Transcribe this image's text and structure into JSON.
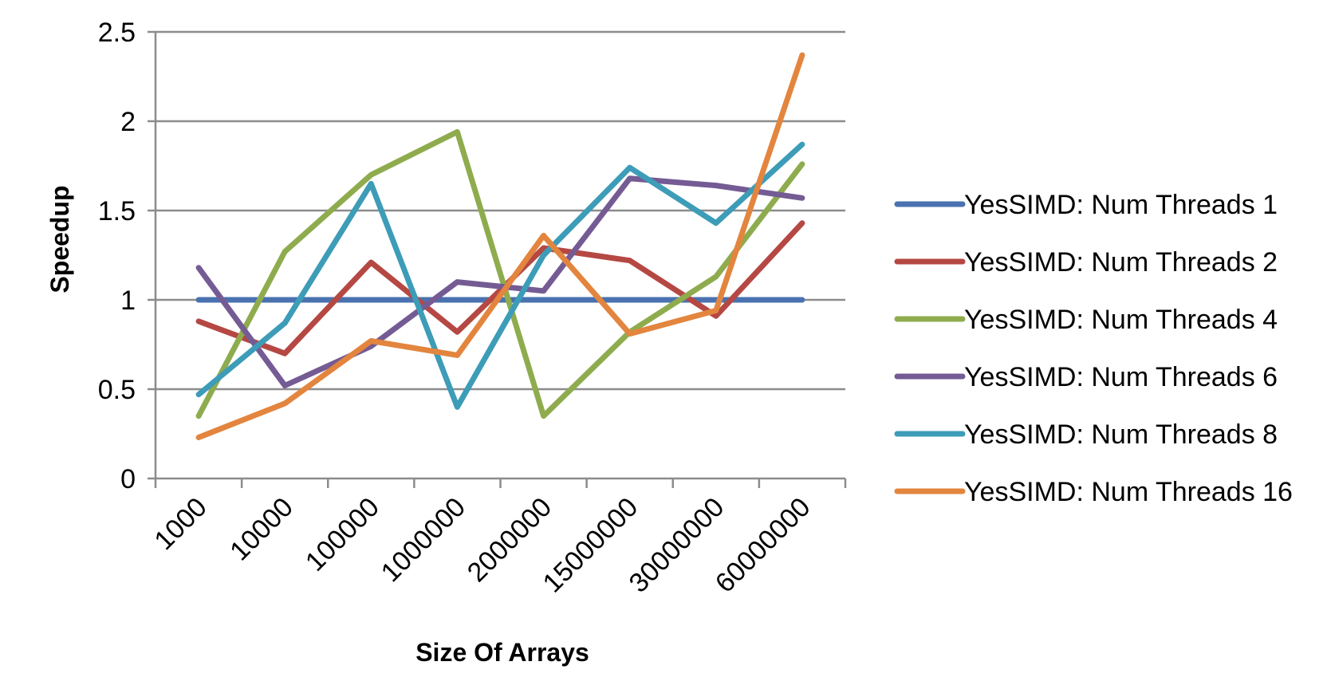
{
  "chart_data": {
    "type": "line",
    "title": "",
    "xlabel": "Size Of Arrays",
    "ylabel": "Speedup",
    "categories": [
      "1000",
      "10000",
      "100000",
      "1000000",
      "2000000",
      "15000000",
      "30000000",
      "60000000"
    ],
    "ylim": [
      0,
      2.5
    ],
    "yticks": [
      "0",
      "0.5",
      "1",
      "1.5",
      "2",
      "2.5"
    ],
    "grid": true,
    "legend_position": "right",
    "series": [
      {
        "name": "YesSIMD: Num Threads 1",
        "color": "#4a72b0",
        "values": [
          1,
          1,
          1,
          1,
          1,
          1,
          1,
          1
        ]
      },
      {
        "name": "YesSIMD: Num Threads 2",
        "color": "#b54843",
        "values": [
          0.88,
          0.7,
          1.21,
          0.82,
          1.29,
          1.22,
          0.91,
          1.43
        ]
      },
      {
        "name": "YesSIMD: Num Threads 4",
        "color": "#8eac4e",
        "values": [
          0.35,
          1.27,
          1.7,
          1.94,
          0.35,
          0.82,
          1.13,
          1.76
        ]
      },
      {
        "name": "YesSIMD: Num Threads 6",
        "color": "#755b94",
        "values": [
          1.18,
          0.52,
          0.74,
          1.1,
          1.05,
          1.68,
          1.64,
          1.57
        ]
      },
      {
        "name": "YesSIMD: Num Threads 8",
        "color": "#3d9cb7",
        "values": [
          0.47,
          0.87,
          1.65,
          0.4,
          1.25,
          1.74,
          1.43,
          1.87
        ]
      },
      {
        "name": "YesSIMD: Num Threads 16",
        "color": "#e3853e",
        "values": [
          0.23,
          0.42,
          0.77,
          0.69,
          1.36,
          0.81,
          0.94,
          2.37
        ]
      }
    ]
  }
}
